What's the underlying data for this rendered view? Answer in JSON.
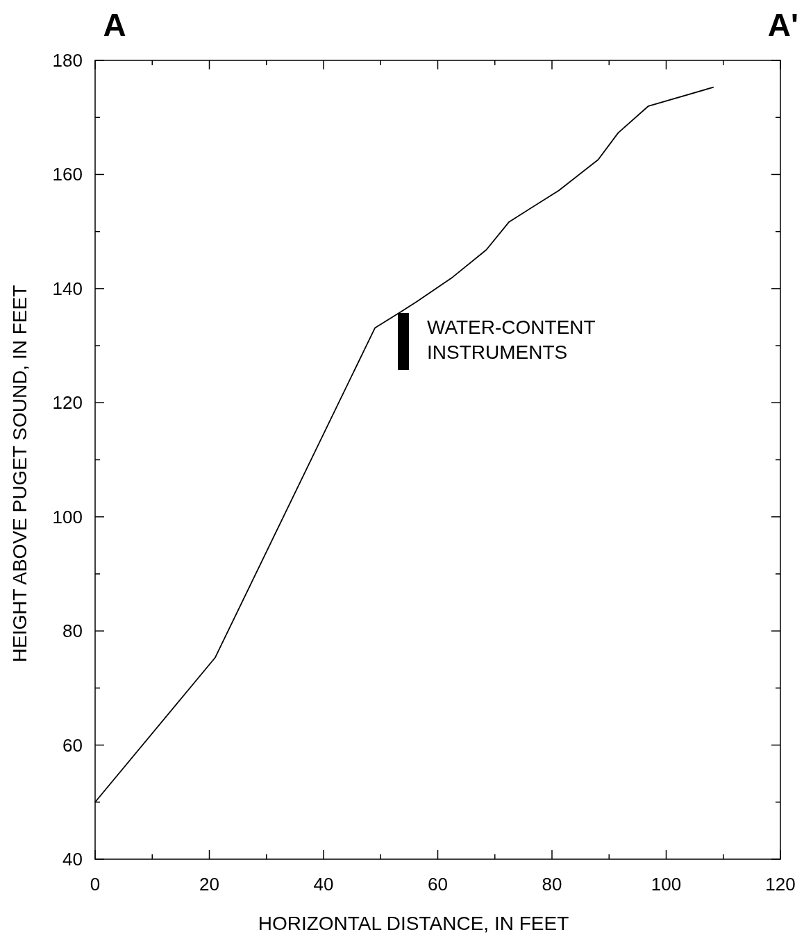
{
  "chart_data": {
    "type": "line",
    "xlabel": "HORIZONTAL DISTANCE, IN FEET",
    "ylabel": "HEIGHT ABOVE PUGET SOUND, IN FEET",
    "x": [
      0,
      21,
      49,
      53.5,
      56.3,
      62.6,
      68.5,
      72.5,
      81.2,
      88.1,
      91.6,
      96.9,
      108.3
    ],
    "series": [
      {
        "color": "#000000",
        "values": [
          50,
          75.3,
          133.1,
          135.9,
          137.7,
          142,
          146.8,
          151.7,
          157.2,
          162.6,
          167.3,
          172,
          175.3
        ]
      }
    ],
    "xlim": [
      0,
      120
    ],
    "xticks": [
      0,
      {
        "value": 10,
        "label": null
      },
      20,
      {
        "value": 30,
        "label": null
      },
      40,
      {
        "value": 50,
        "label": null
      },
      60,
      {
        "value": 70,
        "label": null
      },
      80,
      {
        "value": 90,
        "label": null
      },
      100,
      {
        "value": 110,
        "label": null
      },
      120
    ],
    "ylim": [
      40,
      180
    ],
    "yticks": [
      40,
      {
        "value": 50,
        "label": null
      },
      60,
      {
        "value": 70,
        "label": null
      },
      80,
      {
        "value": 90,
        "label": null
      },
      100,
      {
        "value": 110,
        "label": null
      },
      120,
      {
        "value": 130,
        "label": null
      },
      140,
      {
        "value": 150,
        "label": null
      },
      160,
      {
        "value": 170,
        "label": null
      },
      180
    ],
    "annotations": [
      "A",
      "A'",
      "WATER-CONTENT INSTRUMENTS"
    ],
    "grid": false,
    "marker": "none",
    "line_style": "solid"
  }
}
